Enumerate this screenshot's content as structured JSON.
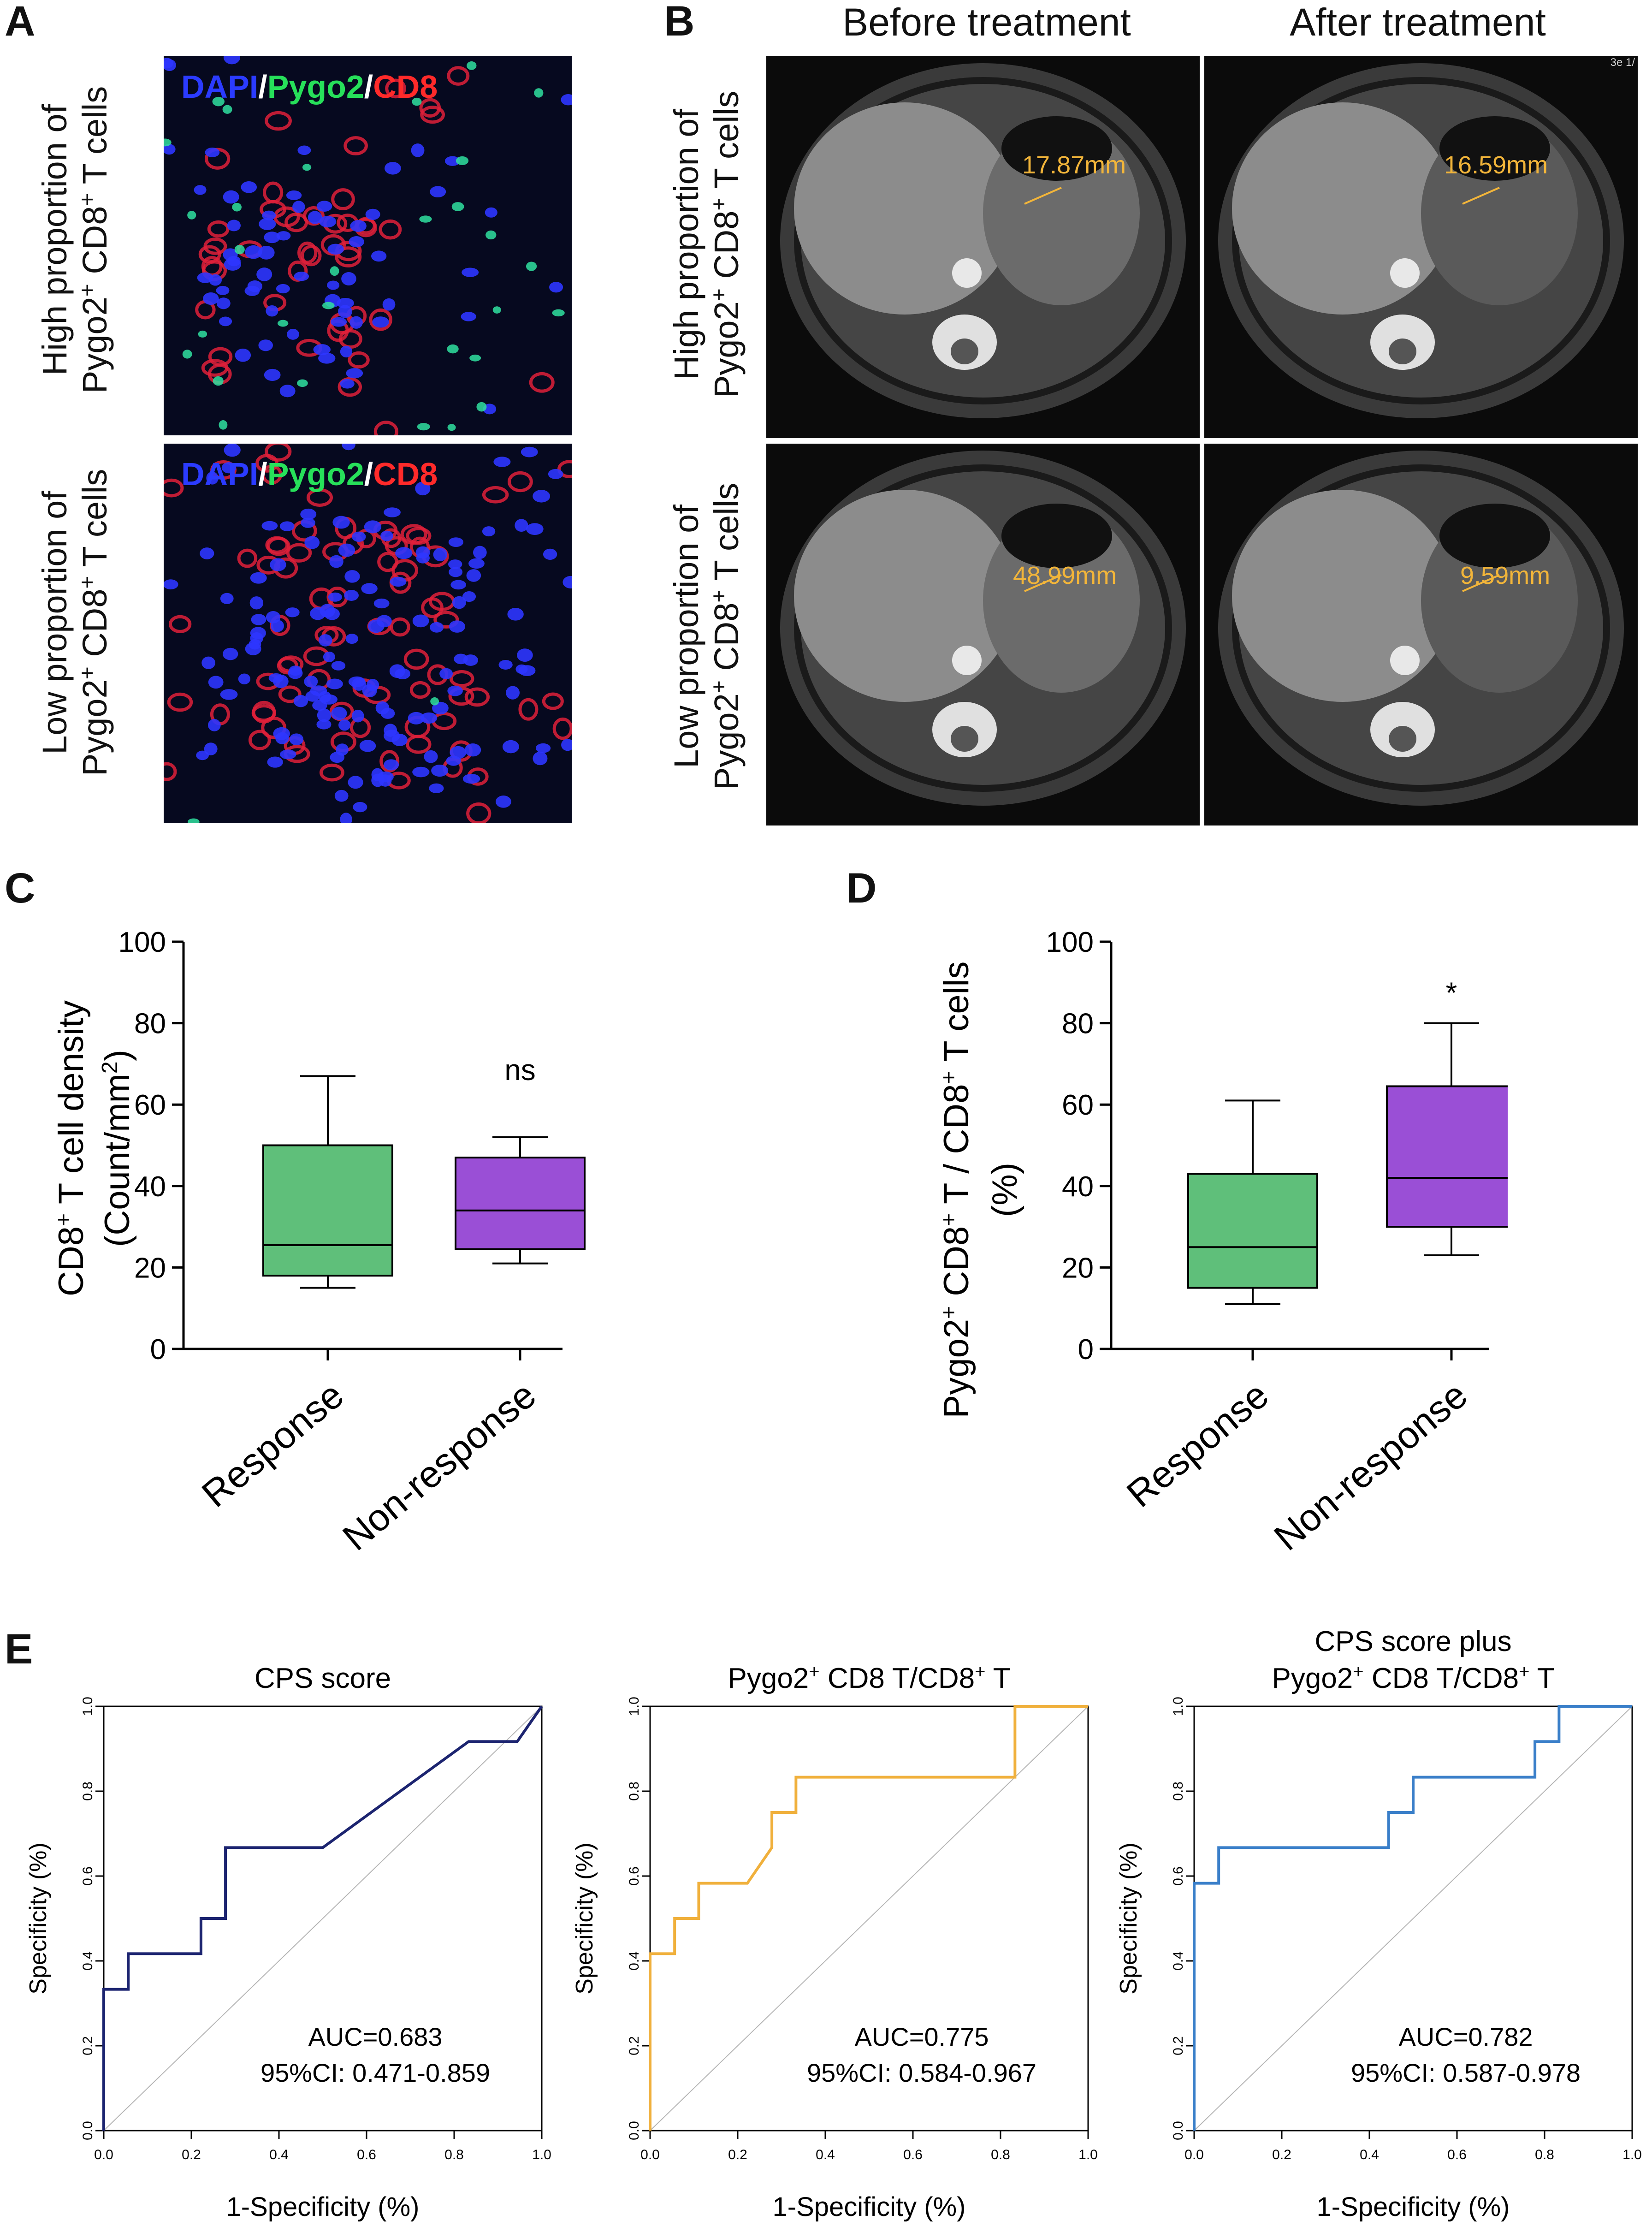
{
  "panels": {
    "A": "A",
    "B": "B",
    "C": "C",
    "D": "D",
    "E": "E"
  },
  "panelA": {
    "row_labels": [
      {
        "line1": "High proportion of",
        "line2_pre": "Pygo2",
        "line2_sup": "+",
        "line2_mid": " CD8",
        "line2_sup2": "+",
        "line2_post": " T cells"
      },
      {
        "line1": "Low proportion of",
        "line2_pre": "Pygo2",
        "line2_sup": "+",
        "line2_mid": " CD8",
        "line2_sup2": "+",
        "line2_post": " T cells"
      }
    ],
    "stain_label": {
      "dapi": "DAPI",
      "sep1": "/",
      "pygo2": "Pygo2",
      "sep2": "/",
      "cd8": "CD8"
    },
    "colors": {
      "dapi": "#2b3bff",
      "pygo2": "#27e05a",
      "cd8": "#ff2a2a",
      "sep": "#ffffff"
    }
  },
  "panelB": {
    "col_headers": [
      "Before treatment",
      "After treatment"
    ],
    "measurements": [
      "17.87mm",
      "16.59mm",
      "48.99mm",
      "9.59mm"
    ],
    "corner_text": "3e 1/"
  },
  "chart_data": [
    {
      "id": "C",
      "type": "box",
      "categories": [
        "Response",
        "Non-response"
      ],
      "ylabel_line1": "CD8+ T cell density",
      "ylabel_line2": "(Count/mm2)",
      "ylim": [
        0,
        100
      ],
      "yticks": [
        0,
        20,
        40,
        60,
        80,
        100
      ],
      "boxes": [
        {
          "name": "Response",
          "min": 15,
          "q1": 18,
          "median": 25.5,
          "q3": 50,
          "max": 67,
          "color": "#5fbf7a"
        },
        {
          "name": "Non-response",
          "min": 21,
          "q1": 24.5,
          "median": 34,
          "q3": 47,
          "max": 52,
          "color": "#9a4fd6"
        }
      ],
      "annotation": "ns"
    },
    {
      "id": "D",
      "type": "box",
      "categories": [
        "Response",
        "Non-response"
      ],
      "ylabel_line1": "Pygo2+ CD8+ T / CD8+ T cells",
      "ylabel_line2": "(%)",
      "ylim": [
        0,
        100
      ],
      "yticks": [
        0,
        20,
        40,
        60,
        80,
        100
      ],
      "boxes": [
        {
          "name": "Response",
          "min": 11,
          "q1": 15,
          "median": 25,
          "q3": 43,
          "max": 61,
          "color": "#5fbf7a"
        },
        {
          "name": "Non-response",
          "min": 23,
          "q1": 30,
          "median": 42,
          "q3": 64.5,
          "max": 80,
          "color": "#9a4fd6"
        }
      ],
      "annotation": "*"
    },
    {
      "id": "E1",
      "type": "line",
      "title": "CPS score",
      "xlabel": "1-Specificity (%)",
      "ylabel": "Specificity (%)",
      "xlim": [
        0,
        1
      ],
      "ylim": [
        0,
        1
      ],
      "ticks": [
        0.0,
        0.2,
        0.4,
        0.6,
        0.8,
        1.0
      ],
      "tick_labels": [
        "0.0",
        "0.2",
        "0.4",
        "0.6",
        "0.8",
        "1.0"
      ],
      "color": "#1c2470",
      "points": [
        [
          0,
          0
        ],
        [
          0,
          0.333
        ],
        [
          0.056,
          0.333
        ],
        [
          0.056,
          0.417
        ],
        [
          0.222,
          0.417
        ],
        [
          0.222,
          0.5
        ],
        [
          0.278,
          0.5
        ],
        [
          0.278,
          0.667
        ],
        [
          0.5,
          0.667
        ],
        [
          0.833,
          0.917
        ],
        [
          0.944,
          0.917
        ],
        [
          1,
          1
        ]
      ],
      "auc": "AUC=0.683",
      "ci": "95%CI: 0.471-0.859"
    },
    {
      "id": "E2",
      "type": "line",
      "title": "Pygo2+ CD8 T/CD8+ T",
      "xlabel": "1-Specificity (%)",
      "ylabel": "Specificity (%)",
      "xlim": [
        0,
        1
      ],
      "ylim": [
        0,
        1
      ],
      "ticks": [
        0.0,
        0.2,
        0.4,
        0.6,
        0.8,
        1.0
      ],
      "tick_labels": [
        "0.0",
        "0.2",
        "0.4",
        "0.6",
        "0.8",
        "1.0"
      ],
      "color": "#f0b03c",
      "points": [
        [
          0,
          0
        ],
        [
          0,
          0.417
        ],
        [
          0.056,
          0.417
        ],
        [
          0.056,
          0.5
        ],
        [
          0.111,
          0.5
        ],
        [
          0.111,
          0.583
        ],
        [
          0.222,
          0.583
        ],
        [
          0.278,
          0.667
        ],
        [
          0.278,
          0.75
        ],
        [
          0.333,
          0.75
        ],
        [
          0.333,
          0.833
        ],
        [
          0.833,
          0.833
        ],
        [
          0.833,
          1
        ],
        [
          1,
          1
        ]
      ],
      "auc": "AUC=0.775",
      "ci": "95%CI: 0.584-0.967"
    },
    {
      "id": "E3",
      "type": "line",
      "title_line1": "CPS score plus",
      "title_line2": "Pygo2+ CD8 T/CD8+ T",
      "xlabel": "1-Specificity (%)",
      "ylabel": "Specificity (%)",
      "xlim": [
        0,
        1
      ],
      "ylim": [
        0,
        1
      ],
      "ticks": [
        0.0,
        0.2,
        0.4,
        0.6,
        0.8,
        1.0
      ],
      "tick_labels": [
        "0.0",
        "0.2",
        "0.4",
        "0.6",
        "0.8",
        "1.0"
      ],
      "color": "#3a7fc9",
      "points": [
        [
          0,
          0
        ],
        [
          0,
          0.583
        ],
        [
          0.056,
          0.583
        ],
        [
          0.056,
          0.667
        ],
        [
          0.444,
          0.667
        ],
        [
          0.444,
          0.75
        ],
        [
          0.5,
          0.75
        ],
        [
          0.5,
          0.833
        ],
        [
          0.778,
          0.833
        ],
        [
          0.778,
          0.917
        ],
        [
          0.833,
          0.917
        ],
        [
          0.833,
          1
        ],
        [
          1,
          1
        ]
      ],
      "auc": "AUC=0.782",
      "ci": "95%CI: 0.587-0.978"
    }
  ]
}
